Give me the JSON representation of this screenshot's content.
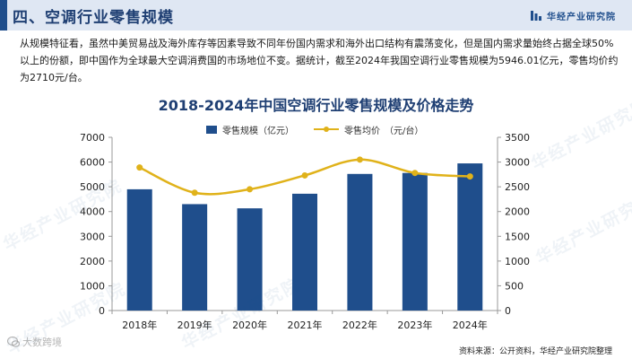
{
  "header": {
    "title": "四、空调行业零售规模",
    "brand": "华经产业研究院"
  },
  "paragraph": "从规模特征看，虽然中美贸易战及海外库存等因素导致不同年份国内需求和海外出口结构有震荡变化，但是国内需求量始终占据全球50%以上的份额，即中国作为全球最大空调消费国的市场地位不变。据统计，截至2024年我国空调行业零售规模为5946.01亿元，零售均价约为2710元/台。",
  "watermark": "华经产业研究院",
  "social_handle": "大数跨境",
  "source": "资料来源：公开资料，华经产业研究院整理",
  "colors": {
    "bar": "#1f4e8c",
    "line": "#e0b21a"
  },
  "chart_data": {
    "type": "bar+line",
    "title": "2018-2024年中国空调行业零售规模及价格走势",
    "categories": [
      "2018年",
      "2019年",
      "2020年",
      "2021年",
      "2022年",
      "2023年",
      "2024年"
    ],
    "series": [
      {
        "name": "零售规模（亿元）",
        "type": "bar",
        "axis": "left",
        "values": [
          4900,
          4300,
          4130,
          4720,
          5520,
          5560,
          5946.01
        ]
      },
      {
        "name": "零售均价　（元/台）",
        "type": "line",
        "axis": "right",
        "values": [
          2890,
          2380,
          2450,
          2730,
          3050,
          2780,
          2710
        ]
      }
    ],
    "y_left": {
      "min": 0,
      "max": 7000,
      "ticks": [
        0,
        1000,
        2000,
        3000,
        4000,
        5000,
        6000,
        7000
      ]
    },
    "y_right": {
      "min": 0,
      "max": 3500,
      "ticks": [
        0,
        500,
        1000,
        1500,
        2000,
        2500,
        3000,
        3500
      ]
    },
    "legend_position": "top"
  }
}
